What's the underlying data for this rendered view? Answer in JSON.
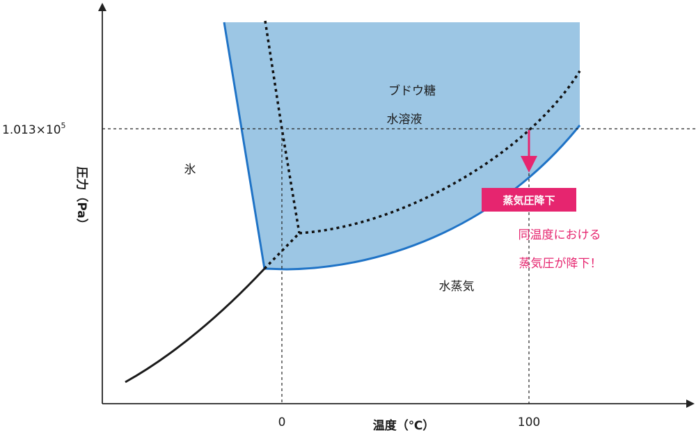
{
  "axes": {
    "x_title": "温度（℃）",
    "y_title": "圧力（Pa）",
    "x_ticks": [
      "0",
      "100"
    ],
    "y_tick": {
      "mantissa": "1.013×10",
      "exponent": "5"
    }
  },
  "regions": {
    "solution_line1": "ブドウ糖",
    "solution_line2": "水溶液",
    "ice": "氷",
    "vapor": "水蒸気"
  },
  "annotation": {
    "badge": "蒸気圧降下",
    "note_line1": "同温度における",
    "note_line2": "蒸気圧が降下！"
  },
  "colors": {
    "solution_fill": "#9cc6e4",
    "solution_boundary": "#1f73c6",
    "accent": "#e6256f",
    "pure_water_curve": "#1a1a1a"
  }
}
